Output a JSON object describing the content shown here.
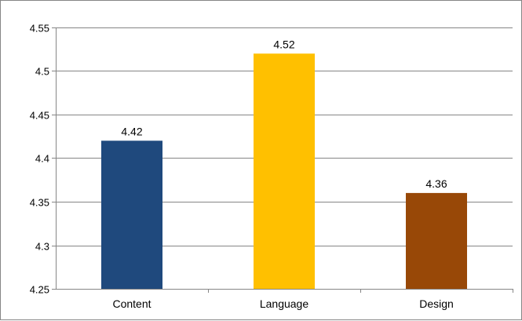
{
  "chart_data": {
    "type": "bar",
    "categories": [
      "Content",
      "Language",
      "Design"
    ],
    "values": [
      4.42,
      4.52,
      4.36
    ],
    "data_labels": [
      "4.42",
      "4.52",
      "4.36"
    ],
    "bar_colors": [
      "#1f497d",
      "#ffc000",
      "#984807"
    ],
    "ylim": [
      4.25,
      4.55
    ],
    "yticks": [
      "4.25",
      "4.3",
      "4.35",
      "4.4",
      "4.45",
      "4.5",
      "4.55"
    ],
    "title": "",
    "xlabel": "",
    "ylabel": "",
    "grid": true,
    "gridline_color": "#868686"
  }
}
